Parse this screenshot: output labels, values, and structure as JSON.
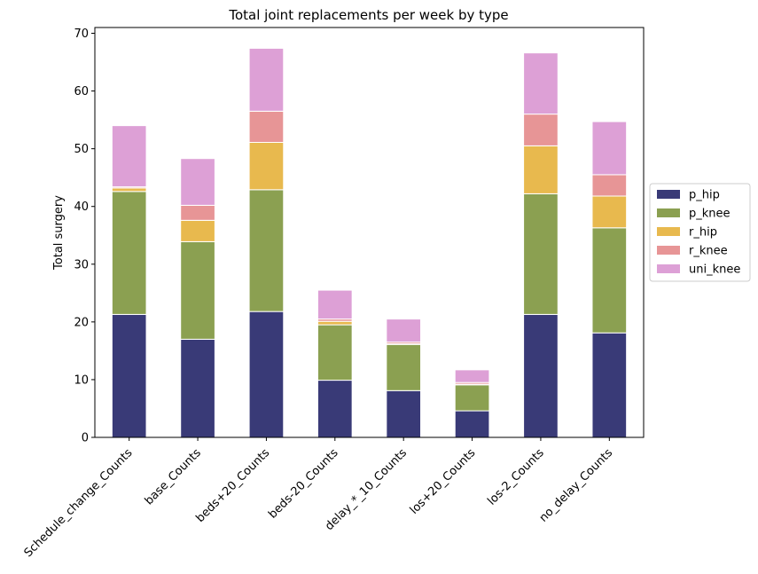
{
  "chart_data": {
    "type": "bar",
    "stacked": true,
    "title": "Total joint replacements per week by type",
    "xlabel": "",
    "ylabel": "Total surgery",
    "ylim": [
      0,
      71
    ],
    "yticks": [
      0,
      10,
      20,
      30,
      40,
      50,
      60,
      70
    ],
    "grid": false,
    "legend_position": "right",
    "categories": [
      "Schedule_change_Counts",
      "base_Counts",
      "beds+20_Counts",
      "beds-20_Counts",
      "delay_*_10_Counts",
      "los+20_Counts",
      "los-2_Counts",
      "no_delay_Counts"
    ],
    "series": [
      {
        "name": "p_hip",
        "color": "#393a77",
        "values": [
          21.3,
          17.0,
          21.8,
          9.9,
          8.1,
          4.6,
          21.3,
          18.1
        ]
      },
      {
        "name": "p_knee",
        "color": "#8ba051",
        "values": [
          21.3,
          16.9,
          21.1,
          9.6,
          8.0,
          4.5,
          20.9,
          18.2
        ]
      },
      {
        "name": "r_hip",
        "color": "#e8b94e",
        "values": [
          0.6,
          3.7,
          8.2,
          0.6,
          0.1,
          0.1,
          8.3,
          5.5
        ]
      },
      {
        "name": "r_knee",
        "color": "#e79596",
        "values": [
          0.2,
          2.6,
          5.4,
          0.4,
          0.3,
          0.3,
          5.5,
          3.7
        ]
      },
      {
        "name": "uni_knee",
        "color": "#dda0d6",
        "values": [
          10.6,
          8.1,
          10.9,
          5.0,
          4.0,
          2.2,
          10.6,
          9.2
        ]
      }
    ]
  }
}
